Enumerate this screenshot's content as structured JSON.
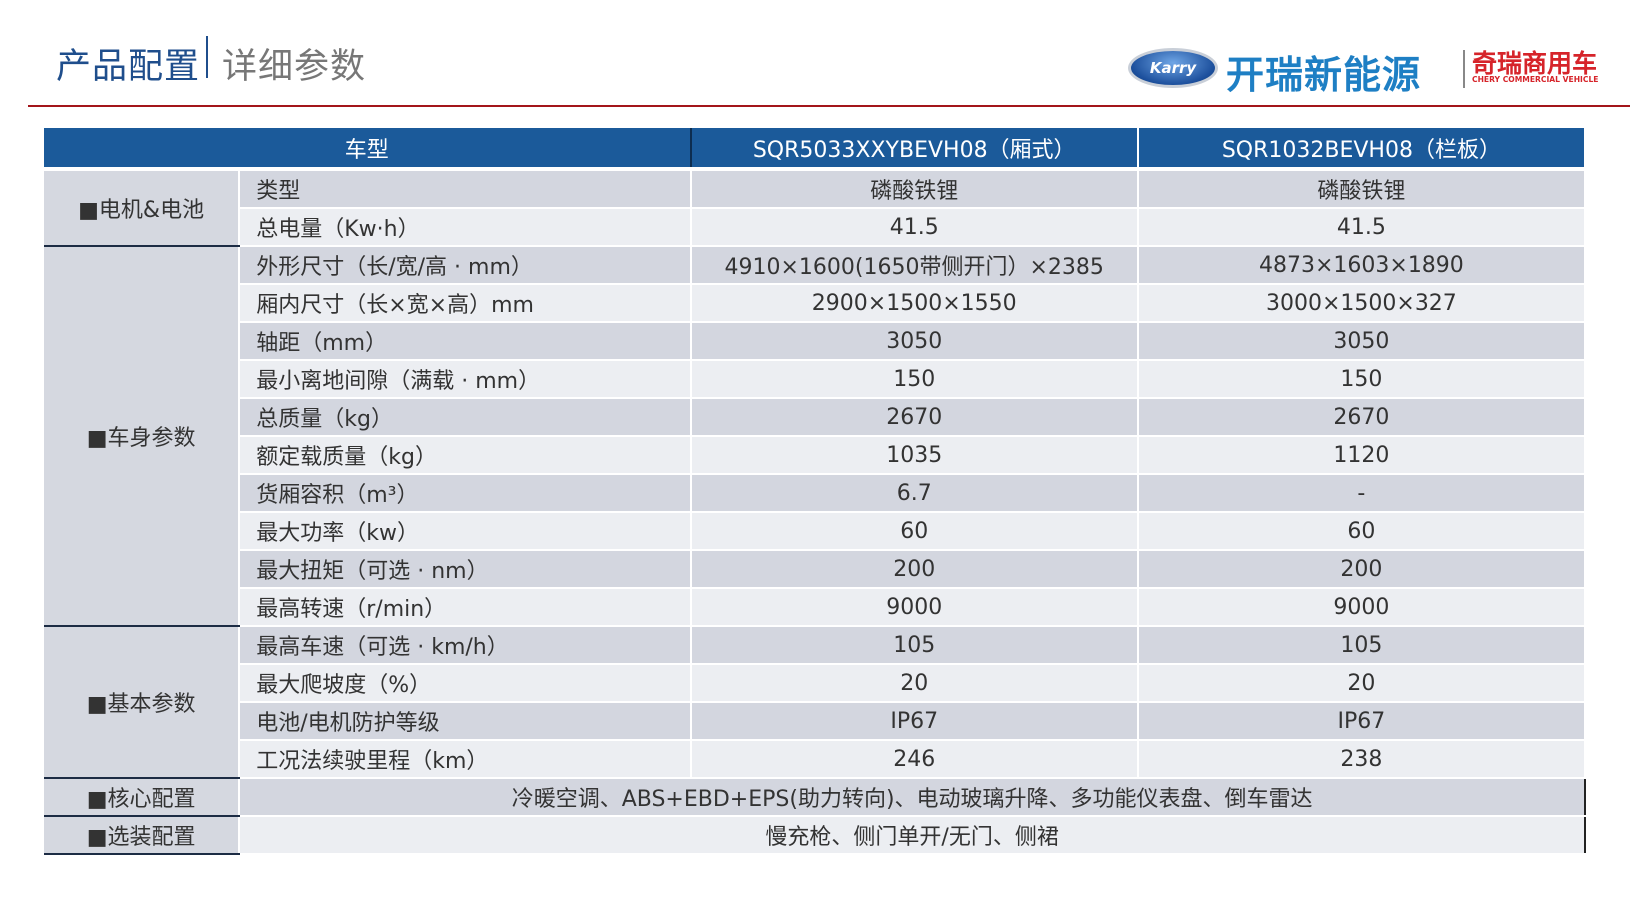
{
  "header": {
    "title": "产品配置",
    "subtitle": "详细参数",
    "logo": {
      "karry_text": "Karry",
      "brand_main": "开瑞新能源",
      "brand_cn": "奇瑞商用车",
      "brand_en": "CHERY COMMERCIAL VEHICLE"
    },
    "accent_color": "#a3151a",
    "title_color": "#1f4e8c"
  },
  "table": {
    "header": {
      "col_model": "车型",
      "col_a": "SQR5033XXYBEVH08（厢式）",
      "col_b": "SQR1032BEVH08（栏板）"
    },
    "header_color": "#1b5a9a",
    "groups": [
      {
        "category": "■电机&电池",
        "rows": [
          {
            "label": "类型",
            "a": "磷酸铁锂",
            "b": "磷酸铁锂"
          },
          {
            "label": "总电量（Kw·h）",
            "a": "41.5",
            "b": "41.5"
          }
        ]
      },
      {
        "category": "■车身参数",
        "rows": [
          {
            "label": "外形尺寸（长/宽/高 · mm）",
            "a": "4910×1600(1650带侧开门）×2385",
            "b": "4873×1603×1890"
          },
          {
            "label": "厢内尺寸（长×宽×高）mm",
            "a": "2900×1500×1550",
            "b": "3000×1500×327"
          },
          {
            "label": "轴距（mm）",
            "a": "3050",
            "b": "3050"
          },
          {
            "label": "最小离地间隙（满载 · mm）",
            "a": "150",
            "b": "150"
          },
          {
            "label": "总质量（kg）",
            "a": "2670",
            "b": "2670"
          },
          {
            "label": "额定载质量（kg）",
            "a": "1035",
            "b": "1120"
          },
          {
            "label": "货厢容积（m³）",
            "a": "6.7",
            "b": "-"
          },
          {
            "label": "最大功率（kw）",
            "a": "60",
            "b": "60"
          },
          {
            "label": "最大扭矩（可选 · nm）",
            "a": "200",
            "b": "200"
          },
          {
            "label": "最高转速（r/min）",
            "a": "9000",
            "b": "9000"
          }
        ]
      },
      {
        "category": "■基本参数",
        "rows": [
          {
            "label": "最高车速（可选 · km/h）",
            "a": "105",
            "b": "105"
          },
          {
            "label": "最大爬坡度（%）",
            "a": "20",
            "b": "20"
          },
          {
            "label": "电池/电机防护等级",
            "a": "IP67",
            "b": "IP67"
          },
          {
            "label": "工况法续驶里程（km）",
            "a": "246",
            "b": "238"
          }
        ]
      }
    ],
    "full_rows": [
      {
        "category": "■核心配置",
        "value": "冷暖空调、ABS+EBD+EPS(助力转向)、电动玻璃升降、多功能仪表盘、倒车雷达"
      },
      {
        "category": "■选装配置",
        "value": "慢充枪、侧门单开/无门、侧裙"
      }
    ]
  }
}
